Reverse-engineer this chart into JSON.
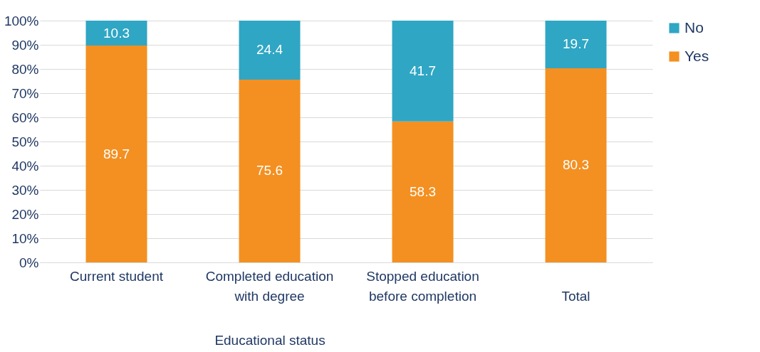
{
  "chart_data": {
    "type": "bar",
    "stacked": true,
    "xlabel": "Educational status",
    "categories": [
      "Current student",
      "Completed education with degree",
      "Stopped education before completion",
      "Total"
    ],
    "series": [
      {
        "name": "Yes",
        "color": "#f39021",
        "values": [
          89.7,
          75.6,
          58.3,
          80.3
        ]
      },
      {
        "name": "No",
        "color": "#2fa6c4",
        "values": [
          10.3,
          24.4,
          41.7,
          19.7
        ]
      }
    ],
    "ylim": [
      0,
      100
    ],
    "yticks": [
      {
        "value": 0,
        "label": "0%"
      },
      {
        "value": 10,
        "label": "10%"
      },
      {
        "value": 20,
        "label": "20%"
      },
      {
        "value": 30,
        "label": "30%"
      },
      {
        "value": 40,
        "label": "40%"
      },
      {
        "value": 50,
        "label": "50%"
      },
      {
        "value": 60,
        "label": "60%"
      },
      {
        "value": 70,
        "label": "70%"
      },
      {
        "value": 80,
        "label": "80%"
      },
      {
        "value": 90,
        "label": "90%"
      },
      {
        "value": 100,
        "label": "100%"
      }
    ],
    "grid": "y",
    "legend": "right",
    "data_labels": true
  }
}
